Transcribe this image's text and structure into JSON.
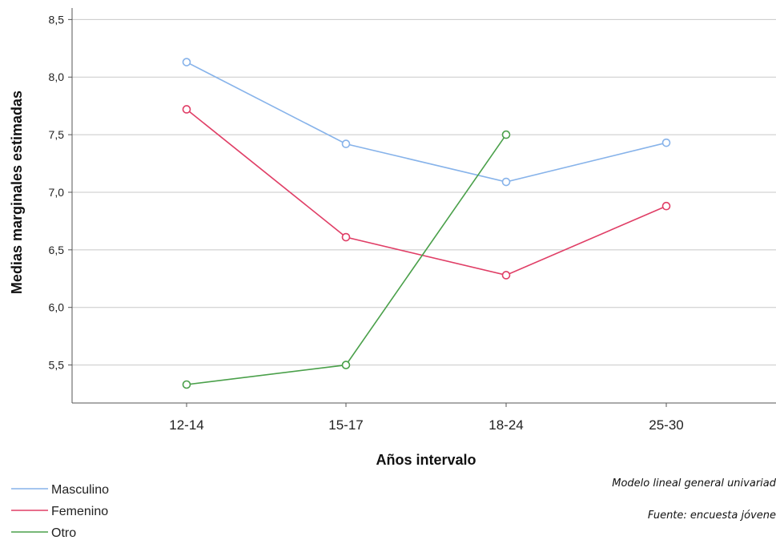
{
  "chart_data": {
    "type": "line",
    "title": "",
    "xlabel": "Años intervalo",
    "ylabel": "Medias marginales estimadas",
    "categories": [
      "12-14",
      "15-17",
      "18-24",
      "25-30"
    ],
    "ylim": [
      5.17,
      8.6
    ],
    "yticks": [
      5.5,
      6.0,
      6.5,
      7.0,
      7.5,
      8.0,
      8.5
    ],
    "ytick_labels": [
      "5,5",
      "6,0",
      "6,5",
      "7,0",
      "7,5",
      "8,0",
      "8,5"
    ],
    "grid": true,
    "legend_position": "bottom-left",
    "series": [
      {
        "name": "Masculino",
        "color": "#87b3ea",
        "values": [
          8.13,
          7.42,
          7.09,
          7.43
        ]
      },
      {
        "name": "Femenino",
        "color": "#e03e66",
        "values": [
          7.72,
          6.61,
          6.28,
          6.88
        ]
      },
      {
        "name": "Otro",
        "color": "#4aa04a",
        "values": [
          5.33,
          5.5,
          7.5,
          null
        ]
      }
    ],
    "annotations": [
      "Modelo lineal general univariad",
      "Fuente: encuesta jóvene"
    ]
  }
}
